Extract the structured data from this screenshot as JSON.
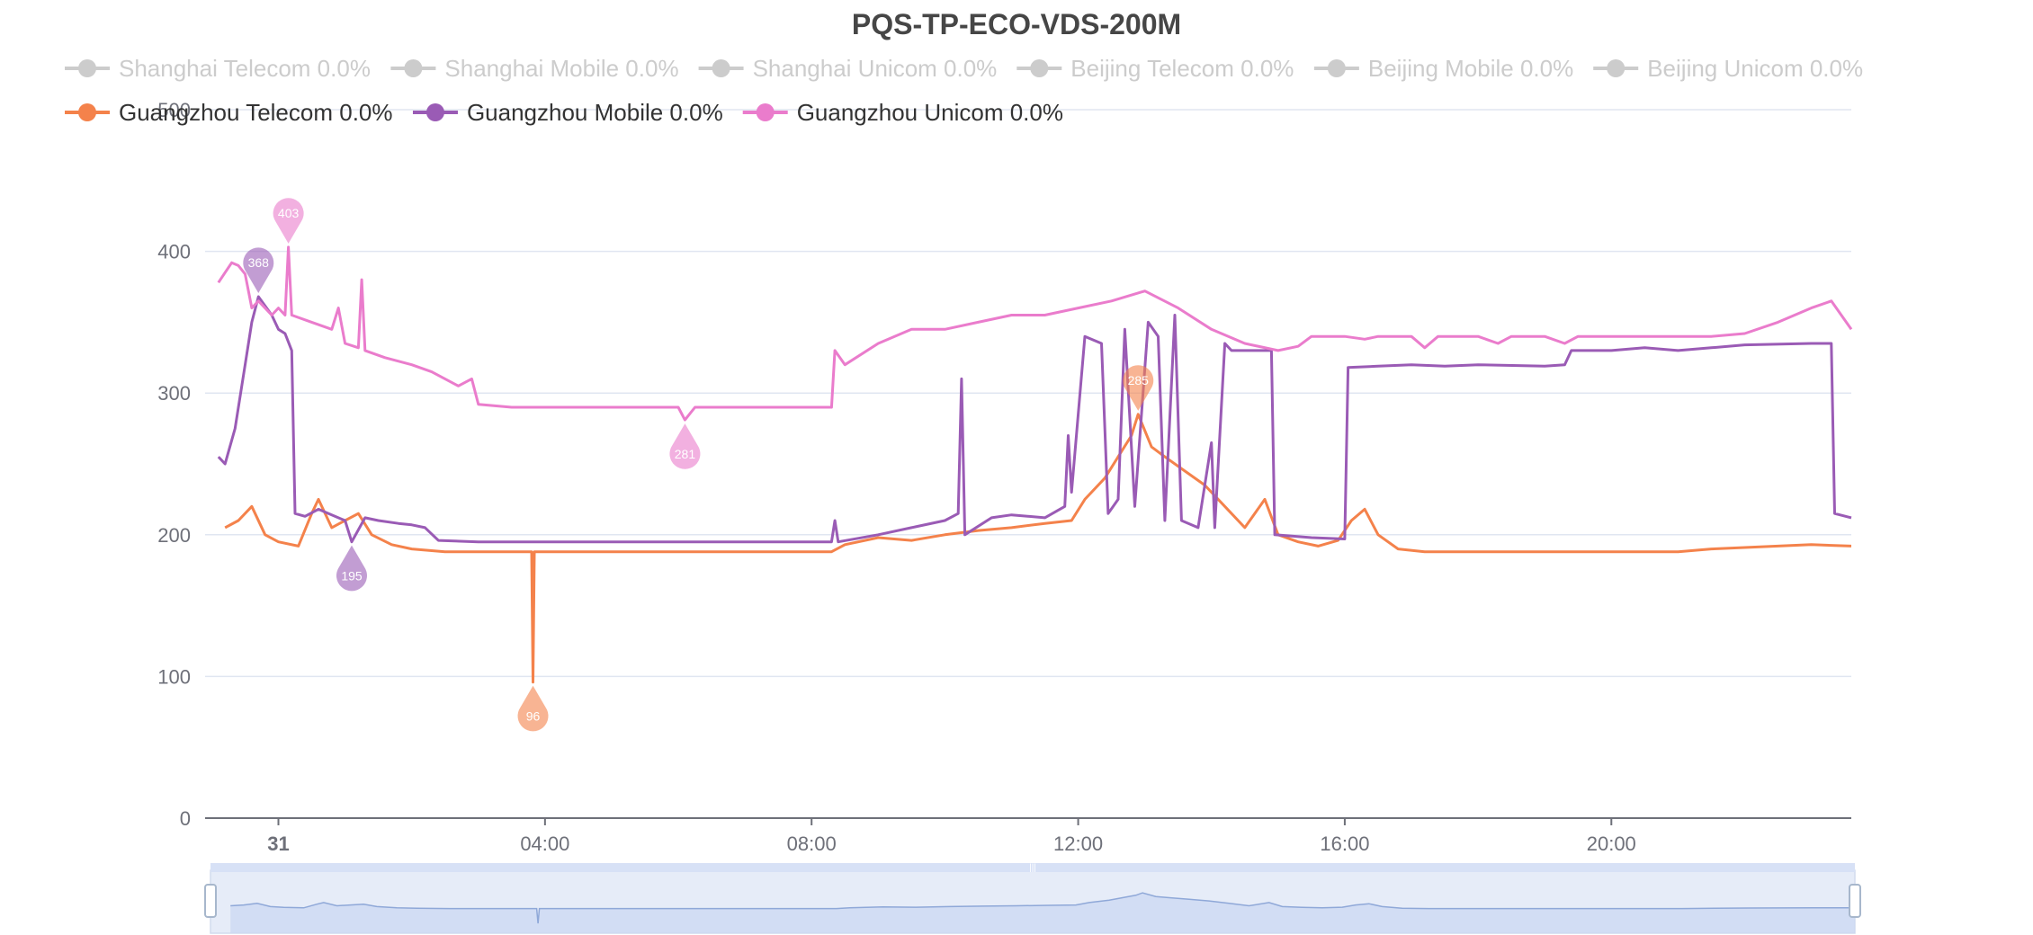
{
  "chart_data": {
    "type": "line",
    "title": "PQS-TP-ECO-VDS-200M",
    "ylim": [
      0,
      500
    ],
    "yticks": [
      0,
      100,
      200,
      300,
      400,
      500
    ],
    "x_range_hours": [
      -1.1,
      23.6
    ],
    "xticks": [
      {
        "hour": 0,
        "label": "31",
        "bold": true
      },
      {
        "hour": 4,
        "label": "04:00"
      },
      {
        "hour": 8,
        "label": "08:00"
      },
      {
        "hour": 12,
        "label": "12:00"
      },
      {
        "hour": 16,
        "label": "16:00"
      },
      {
        "hour": 20,
        "label": "20:00"
      }
    ],
    "grid": true,
    "legend_position": "top",
    "legend": [
      {
        "label": "Shanghai Telecom 0.0%",
        "active": false
      },
      {
        "label": "Shanghai Mobile 0.0%",
        "active": false
      },
      {
        "label": "Shanghai Unicom 0.0%",
        "active": false
      },
      {
        "label": "Beijing Telecom 0.0%",
        "active": false
      },
      {
        "label": "Beijing Mobile 0.0%",
        "active": false
      },
      {
        "label": "Beijing Unicom 0.0%",
        "active": false
      },
      {
        "label": "Guangzhou Telecom 0.0%",
        "active": true,
        "color": "#f4824b"
      },
      {
        "label": "Guangzhou Mobile 0.0%",
        "active": true,
        "color": "#9a5bb5"
      },
      {
        "label": "Guangzhou Unicom 0.0%",
        "active": true,
        "color": "#ea7ccc"
      }
    ],
    "series": [
      {
        "name": "Guangzhou Telecom 0.0%",
        "color": "#f4824b",
        "points": [
          [
            -0.8,
            205
          ],
          [
            -0.6,
            210
          ],
          [
            -0.4,
            220
          ],
          [
            -0.2,
            200
          ],
          [
            0,
            195
          ],
          [
            0.3,
            192
          ],
          [
            0.5,
            215
          ],
          [
            0.6,
            225
          ],
          [
            0.8,
            205
          ],
          [
            1,
            210
          ],
          [
            1.2,
            215
          ],
          [
            1.4,
            200
          ],
          [
            1.7,
            193
          ],
          [
            2.0,
            190
          ],
          [
            2.5,
            188
          ],
          [
            3.0,
            188
          ],
          [
            3.6,
            188
          ],
          [
            3.8,
            188
          ],
          [
            3.82,
            96
          ],
          [
            3.84,
            188
          ],
          [
            4.5,
            188
          ],
          [
            5,
            188
          ],
          [
            6,
            188
          ],
          [
            7,
            188
          ],
          [
            8,
            188
          ],
          [
            8.3,
            188
          ],
          [
            8.5,
            193
          ],
          [
            9,
            198
          ],
          [
            9.5,
            196
          ],
          [
            10,
            200
          ],
          [
            10.5,
            203
          ],
          [
            11,
            205
          ],
          [
            11.5,
            208
          ],
          [
            11.9,
            210
          ],
          [
            12.1,
            225
          ],
          [
            12.4,
            240
          ],
          [
            12.6,
            255
          ],
          [
            12.8,
            270
          ],
          [
            12.9,
            285
          ],
          [
            13.1,
            262
          ],
          [
            13.3,
            255
          ],
          [
            13.6,
            245
          ],
          [
            13.9,
            235
          ],
          [
            14.2,
            220
          ],
          [
            14.5,
            205
          ],
          [
            14.8,
            225
          ],
          [
            15.0,
            200
          ],
          [
            15.3,
            195
          ],
          [
            15.6,
            192
          ],
          [
            15.9,
            196
          ],
          [
            16.1,
            210
          ],
          [
            16.3,
            218
          ],
          [
            16.5,
            200
          ],
          [
            16.8,
            190
          ],
          [
            17.2,
            188
          ],
          [
            18,
            188
          ],
          [
            19,
            188
          ],
          [
            20,
            188
          ],
          [
            21,
            188
          ],
          [
            21.5,
            190
          ],
          [
            22,
            191
          ],
          [
            23,
            193
          ],
          [
            23.6,
            192
          ]
        ]
      },
      {
        "name": "Guangzhou Mobile 0.0%",
        "color": "#9a5bb5",
        "points": [
          [
            -0.9,
            255
          ],
          [
            -0.8,
            250
          ],
          [
            -0.65,
            275
          ],
          [
            -0.5,
            320
          ],
          [
            -0.4,
            350
          ],
          [
            -0.3,
            368
          ],
          [
            -0.1,
            355
          ],
          [
            0,
            345
          ],
          [
            0.1,
            342
          ],
          [
            0.2,
            330
          ],
          [
            0.25,
            215
          ],
          [
            0.4,
            213
          ],
          [
            0.6,
            218
          ],
          [
            0.8,
            214
          ],
          [
            1.0,
            210
          ],
          [
            1.1,
            195
          ],
          [
            1.3,
            212
          ],
          [
            1.5,
            210
          ],
          [
            1.8,
            208
          ],
          [
            2.0,
            207
          ],
          [
            2.2,
            205
          ],
          [
            2.4,
            196
          ],
          [
            3,
            195
          ],
          [
            4,
            195
          ],
          [
            5,
            195
          ],
          [
            6,
            195
          ],
          [
            7,
            195
          ],
          [
            8,
            195
          ],
          [
            8.3,
            195
          ],
          [
            8.35,
            210
          ],
          [
            8.4,
            195
          ],
          [
            9,
            200
          ],
          [
            9.5,
            205
          ],
          [
            10,
            210
          ],
          [
            10.2,
            215
          ],
          [
            10.25,
            310
          ],
          [
            10.3,
            200
          ],
          [
            10.7,
            212
          ],
          [
            11,
            214
          ],
          [
            11.5,
            212
          ],
          [
            11.8,
            220
          ],
          [
            11.85,
            270
          ],
          [
            11.9,
            230
          ],
          [
            12.1,
            340
          ],
          [
            12.35,
            335
          ],
          [
            12.45,
            215
          ],
          [
            12.6,
            225
          ],
          [
            12.7,
            345
          ],
          [
            12.85,
            220
          ],
          [
            13.05,
            350
          ],
          [
            13.2,
            340
          ],
          [
            13.3,
            210
          ],
          [
            13.45,
            355
          ],
          [
            13.55,
            210
          ],
          [
            13.8,
            205
          ],
          [
            14.0,
            265
          ],
          [
            14.05,
            205
          ],
          [
            14.2,
            335
          ],
          [
            14.3,
            330
          ],
          [
            14.9,
            330
          ],
          [
            14.95,
            200
          ],
          [
            15.5,
            198
          ],
          [
            16.0,
            197
          ],
          [
            16.05,
            318
          ],
          [
            16.5,
            319
          ],
          [
            17,
            320
          ],
          [
            17.5,
            319
          ],
          [
            18,
            320
          ],
          [
            19,
            319
          ],
          [
            19.3,
            320
          ],
          [
            19.4,
            330
          ],
          [
            20,
            330
          ],
          [
            20.5,
            332
          ],
          [
            21,
            330
          ],
          [
            21.5,
            332
          ],
          [
            22,
            334
          ],
          [
            23,
            335
          ],
          [
            23.3,
            335
          ],
          [
            23.35,
            215
          ],
          [
            23.6,
            212
          ]
        ]
      },
      {
        "name": "Guangzhou Unicom 0.0%",
        "color": "#ea7ccc",
        "points": [
          [
            -0.9,
            378
          ],
          [
            -0.8,
            385
          ],
          [
            -0.7,
            392
          ],
          [
            -0.6,
            390
          ],
          [
            -0.5,
            384
          ],
          [
            -0.4,
            360
          ],
          [
            -0.3,
            365
          ],
          [
            -0.1,
            355
          ],
          [
            0,
            360
          ],
          [
            0.1,
            355
          ],
          [
            0.15,
            403
          ],
          [
            0.2,
            355
          ],
          [
            0.5,
            350
          ],
          [
            0.8,
            345
          ],
          [
            0.9,
            360
          ],
          [
            1.0,
            335
          ],
          [
            1.2,
            332
          ],
          [
            1.25,
            380
          ],
          [
            1.3,
            330
          ],
          [
            1.6,
            325
          ],
          [
            2.0,
            320
          ],
          [
            2.3,
            315
          ],
          [
            2.5,
            310
          ],
          [
            2.7,
            305
          ],
          [
            2.9,
            310
          ],
          [
            3.0,
            292
          ],
          [
            3.5,
            290
          ],
          [
            4,
            290
          ],
          [
            5,
            290
          ],
          [
            6,
            290
          ],
          [
            6.1,
            281
          ],
          [
            6.25,
            290
          ],
          [
            7,
            290
          ],
          [
            8,
            290
          ],
          [
            8.3,
            290
          ],
          [
            8.35,
            330
          ],
          [
            8.5,
            320
          ],
          [
            9,
            335
          ],
          [
            9.5,
            345
          ],
          [
            10,
            345
          ],
          [
            10.5,
            350
          ],
          [
            11,
            355
          ],
          [
            11.5,
            355
          ],
          [
            12,
            360
          ],
          [
            12.5,
            365
          ],
          [
            13,
            372
          ],
          [
            13.5,
            360
          ],
          [
            14,
            345
          ],
          [
            14.5,
            335
          ],
          [
            15,
            330
          ],
          [
            15.3,
            333
          ],
          [
            15.5,
            340
          ],
          [
            16,
            340
          ],
          [
            16.3,
            338
          ],
          [
            16.5,
            340
          ],
          [
            17,
            340
          ],
          [
            17.2,
            332
          ],
          [
            17.4,
            340
          ],
          [
            18,
            340
          ],
          [
            18.3,
            335
          ],
          [
            18.5,
            340
          ],
          [
            19,
            340
          ],
          [
            19.3,
            335
          ],
          [
            19.5,
            340
          ],
          [
            20,
            340
          ],
          [
            21,
            340
          ],
          [
            21.5,
            340
          ],
          [
            22,
            342
          ],
          [
            22.5,
            350
          ],
          [
            23,
            360
          ],
          [
            23.3,
            365
          ],
          [
            23.6,
            345
          ]
        ]
      }
    ],
    "markers": [
      {
        "series": 2,
        "hour": 0.15,
        "value": 403,
        "label": "403",
        "type": "max"
      },
      {
        "series": 2,
        "hour": 6.1,
        "value": 281,
        "label": "281",
        "type": "min"
      },
      {
        "series": 1,
        "hour": -0.3,
        "value": 368,
        "label": "368",
        "type": "max"
      },
      {
        "series": 1,
        "hour": 1.1,
        "value": 195,
        "label": "195",
        "type": "min"
      },
      {
        "series": 0,
        "hour": 12.9,
        "value": 285,
        "label": "285",
        "type": "max"
      },
      {
        "series": 0,
        "hour": 3.82,
        "value": 96,
        "label": "96",
        "type": "min"
      }
    ],
    "zoom_slider": {
      "start_percent": 0,
      "end_percent": 100,
      "handle_glyph": "|||"
    }
  }
}
